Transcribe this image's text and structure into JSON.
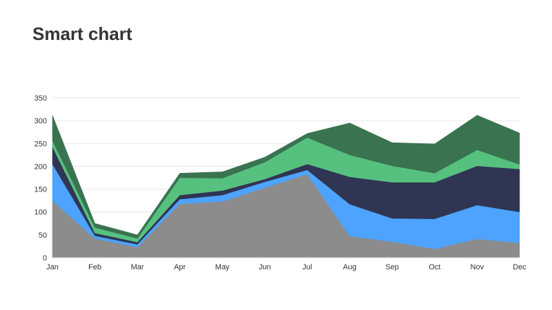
{
  "title": "Smart chart",
  "chart_data": {
    "type": "area",
    "stacked": true,
    "categories": [
      "Jan",
      "Feb",
      "Mar",
      "Apr",
      "May",
      "Jun",
      "Jul",
      "Aug",
      "Sep",
      "Oct",
      "Nov",
      "Dec"
    ],
    "series": [
      {
        "values": [
          125,
          42,
          23,
          118,
          123,
          153,
          183,
          47,
          35,
          19,
          41,
          32
        ],
        "color": "#8c8c8c"
      },
      {
        "values": [
          80,
          6,
          6,
          10,
          14,
          13,
          9,
          70,
          51,
          66,
          74,
          68
        ],
        "color": "#4da3ff"
      },
      {
        "values": [
          38,
          6,
          5,
          9,
          10,
          6,
          13,
          60,
          79,
          80,
          86,
          94
        ],
        "color": "#2f3552"
      },
      {
        "values": [
          13,
          12,
          8,
          38,
          27,
          37,
          58,
          48,
          36,
          20,
          35,
          10
        ],
        "color": "#56c17f"
      },
      {
        "values": [
          56,
          9,
          8,
          10,
          14,
          11,
          9,
          70,
          51,
          64,
          76,
          69
        ],
        "color": "#3a7350"
      }
    ],
    "ylim": [
      0,
      350
    ],
    "yticks": [
      0,
      50,
      100,
      150,
      200,
      250,
      300,
      350
    ],
    "grid": true,
    "legend": "none"
  }
}
